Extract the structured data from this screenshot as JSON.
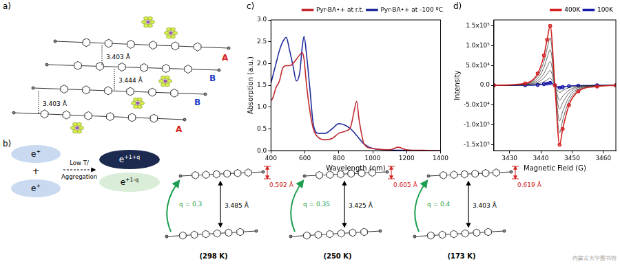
{
  "panel_labels": {
    "a": "a)",
    "b": "b)",
    "c": "c)",
    "d": "d)"
  },
  "panel_a": {
    "molecule_labels": [
      {
        "text": "A",
        "color": "#d42020"
      },
      {
        "text": "B",
        "color": "#1f3cc8"
      },
      {
        "text": "B",
        "color": "#1f3cc8"
      },
      {
        "text": "A",
        "color": "#d42020"
      }
    ],
    "distances": [
      "3.403 Å",
      "3.444 Å",
      "3.403 Å"
    ]
  },
  "panel_b": {
    "monomers": [
      {
        "base": "e",
        "sup": "+"
      },
      {
        "base": "e",
        "sup": "+"
      }
    ],
    "plus": "+",
    "arrow_text": [
      "Low T/",
      "Aggregation"
    ],
    "dimer": [
      {
        "base": "e",
        "sup": "+1+q"
      },
      {
        "base": "e",
        "sup": "+1-q"
      }
    ],
    "structures": [
      {
        "q": "q = 0.3",
        "stack_distance": "3.485 Å",
        "bend": "0.592 Å",
        "temperature": "(298 K)"
      },
      {
        "q": "q = 0.35",
        "stack_distance": "3.425 Å",
        "bend": "0.605 Å",
        "temperature": "(250 K)"
      },
      {
        "q": "q = 0.4",
        "stack_distance": "3.403 Å",
        "bend": "0.619 Å",
        "temperature": "(173 K)"
      }
    ]
  },
  "watermark": "内蒙古大学图书馆",
  "chart_data": [
    {
      "type": "line",
      "x_label": "Wavelength (nm)",
      "y_label": "Absorption (a.u.)",
      "x": [
        400,
        410,
        430,
        450,
        470,
        490,
        510,
        530,
        550,
        570,
        585,
        595,
        610,
        630,
        650,
        680,
        720,
        760,
        800,
        840,
        870,
        890,
        905,
        920,
        950,
        1000,
        1100,
        1150,
        1200,
        1300,
        1400
      ],
      "xlim": [
        400,
        1400
      ],
      "xticks": [
        400,
        600,
        800,
        1000,
        1200,
        1400
      ],
      "ylim": [
        0,
        3
      ],
      "yticks": [
        {
          "value": 0,
          "label": "0.0"
        },
        0.5,
        {
          "value": 1,
          "label": "1.0"
        },
        1.5,
        {
          "value": 2,
          "label": "2.0"
        },
        2.5,
        {
          "value": 3,
          "label": "3.0"
        }
      ],
      "grid": false,
      "legend": "upper right",
      "series": [
        {
          "name": "Pyr-BA•+ at r.t.",
          "color": "#c0282d",
          "values": [
            1.15,
            1.2,
            1.45,
            1.6,
            1.9,
            1.95,
            1.95,
            2.0,
            2.1,
            2.2,
            2.25,
            2.1,
            1.5,
            0.9,
            0.5,
            0.3,
            0.25,
            0.28,
            0.4,
            0.45,
            0.55,
            0.9,
            1.13,
            0.7,
            0.15,
            0.05,
            0.02,
            0.08,
            0.02,
            0.01,
            0
          ]
        },
        {
          "name": "Pyr-BA•+ at -100 ºC",
          "color": "#1f2a9c",
          "values": [
            1.55,
            1.7,
            2.0,
            2.3,
            2.5,
            2.6,
            2.3,
            1.95,
            1.6,
            1.8,
            2.4,
            2.62,
            2.2,
            1.4,
            0.6,
            0.4,
            0.4,
            0.5,
            0.62,
            0.58,
            0.5,
            0.42,
            0.35,
            0.28,
            0.15,
            0.05,
            0.02,
            0.01,
            0.01,
            0,
            0
          ]
        }
      ]
    },
    {
      "type": "line",
      "x_label": "Magnetic Field (G)",
      "y_label": "Intensity",
      "x": [
        3425,
        3435,
        3439,
        3441,
        3442,
        3443,
        3444.5,
        3446,
        3447,
        3449,
        3452,
        3458,
        3464
      ],
      "xlim": [
        3425,
        3464
      ],
      "xticks": [
        3430,
        3440,
        3450,
        3460
      ],
      "ylim": [
        -165000,
        165000
      ],
      "yticks": [
        {
          "value": -150000,
          "label": "-1.5x10⁵"
        },
        {
          "value": -100000,
          "label": "-1.0x10⁵"
        },
        {
          "value": -50000,
          "label": "-5.0x10⁴"
        },
        {
          "value": 0,
          "label": "0.0"
        },
        {
          "value": 50000,
          "label": "5.0x10⁴"
        },
        {
          "value": 100000,
          "label": "1.0x10⁵"
        },
        {
          "value": 150000,
          "label": "1.5x10⁵"
        }
      ],
      "grid": false,
      "legend": "upper right",
      "series": [
        {
          "name": "400K",
          "color": "#d42020",
          "marker": "circle",
          "values": [
            0,
            5000,
            30000,
            75000,
            115000,
            150000,
            0,
            -150000,
            -110000,
            -50000,
            -15000,
            -3000,
            0
          ]
        },
        {
          "color": "#222222",
          "values": [
            0,
            4000,
            24000,
            60000,
            92000,
            120000,
            0,
            -120000,
            -88000,
            -40000,
            -12000,
            -2400,
            0
          ]
        },
        {
          "color": "#222222",
          "values": [
            0,
            3000,
            18000,
            45000,
            69000,
            90000,
            0,
            -90000,
            -66000,
            -30000,
            -9000,
            -1800,
            0
          ]
        },
        {
          "color": "#222222",
          "values": [
            0,
            2000,
            12000,
            30000,
            46000,
            60000,
            0,
            -60000,
            -44000,
            -20000,
            -6000,
            -1200,
            0
          ]
        },
        {
          "color": "#222222",
          "values": [
            0,
            1250,
            7500,
            18750,
            28750,
            37500,
            0,
            -37500,
            -27500,
            -12500,
            -3750,
            -750,
            0
          ]
        },
        {
          "color": "#222222",
          "values": [
            0,
            600,
            3600,
            9000,
            13800,
            18000,
            0,
            -18000,
            -13200,
            -6000,
            -1800,
            -360,
            0
          ]
        },
        {
          "name": "100K",
          "color": "#1a1aa8",
          "marker": "circle",
          "values": [
            0,
            200,
            1200,
            3000,
            4600,
            6000,
            0,
            -6000,
            -4400,
            -2000,
            -600,
            -120,
            0
          ]
        }
      ]
    }
  ]
}
